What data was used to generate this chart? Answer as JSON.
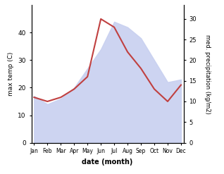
{
  "months": [
    "Jan",
    "Feb",
    "Mar",
    "Apr",
    "May",
    "Jun",
    "Jul",
    "Aug",
    "Sep",
    "Oct",
    "Nov",
    "Dec"
  ],
  "max_temp": [
    17,
    14,
    16,
    20,
    27,
    34,
    44,
    42,
    38,
    30,
    22,
    23
  ],
  "precipitation": [
    11,
    10,
    11,
    13,
    16,
    30,
    28,
    22,
    18,
    13,
    10,
    14
  ],
  "temp_fill_color": "#c8d0f0",
  "precip_color": "#c04040",
  "ylabel_left": "max temp (C)",
  "ylabel_right": "med. precipitation (kg/m2)",
  "xlabel": "date (month)",
  "ylim_left": [
    0,
    50
  ],
  "ylim_right": [
    0,
    33.33
  ],
  "yticks_left": [
    0,
    10,
    20,
    30,
    40
  ],
  "yticks_right": [
    0,
    5,
    10,
    15,
    20,
    25,
    30
  ],
  "figsize": [
    3.18,
    2.47
  ],
  "dpi": 100
}
